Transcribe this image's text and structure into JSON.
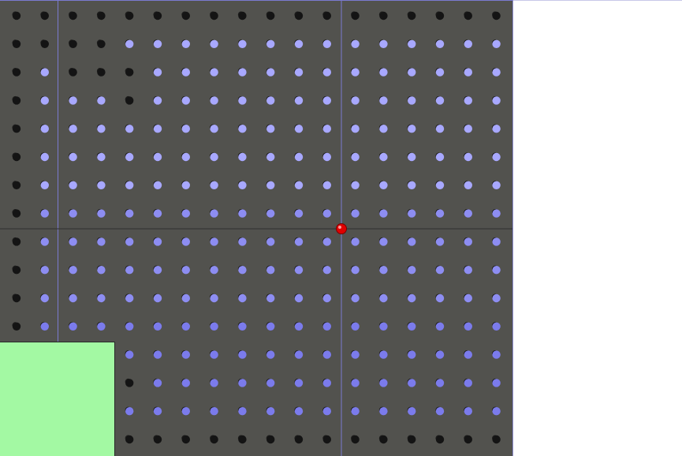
{
  "app": {
    "grid": {
      "rows": 16,
      "cols": 18
    },
    "marker": {
      "color": "#e00000"
    },
    "colors": {
      "background": "#52524e",
      "dot_light": "#a8a8ff",
      "dot_mid": "#8d8df2",
      "dot_dark": "#7b7bec",
      "dot_hole": "#141414",
      "guide_line": "#7a7ad0",
      "crosshair": "#2e2e2e",
      "swatch": "#a3f9a3"
    },
    "dark_holes": [
      [
        0,
        0
      ],
      [
        0,
        1
      ],
      [
        0,
        2
      ],
      [
        0,
        3
      ],
      [
        0,
        4
      ],
      [
        0,
        5
      ],
      [
        0,
        6
      ],
      [
        0,
        7
      ],
      [
        0,
        8
      ],
      [
        0,
        9
      ],
      [
        0,
        10
      ],
      [
        0,
        11
      ],
      [
        0,
        12
      ],
      [
        0,
        13
      ],
      [
        0,
        14
      ],
      [
        0,
        15
      ],
      [
        0,
        16
      ],
      [
        0,
        17
      ],
      [
        1,
        0
      ],
      [
        1,
        1
      ],
      [
        1,
        2
      ],
      [
        1,
        3
      ],
      [
        2,
        0
      ],
      [
        2,
        2
      ],
      [
        2,
        3
      ],
      [
        2,
        4
      ],
      [
        3,
        0
      ],
      [
        3,
        4
      ],
      [
        4,
        0
      ],
      [
        5,
        0
      ],
      [
        6,
        0
      ],
      [
        7,
        0
      ],
      [
        8,
        0
      ],
      [
        9,
        0
      ],
      [
        10,
        0
      ],
      [
        11,
        0
      ],
      [
        13,
        4
      ],
      [
        15,
        4
      ],
      [
        15,
        5
      ],
      [
        15,
        6
      ],
      [
        15,
        7
      ],
      [
        15,
        8
      ],
      [
        15,
        9
      ],
      [
        15,
        10
      ],
      [
        15,
        11
      ],
      [
        15,
        12
      ],
      [
        15,
        13
      ],
      [
        15,
        14
      ],
      [
        15,
        15
      ],
      [
        15,
        16
      ],
      [
        15,
        17
      ]
    ]
  }
}
